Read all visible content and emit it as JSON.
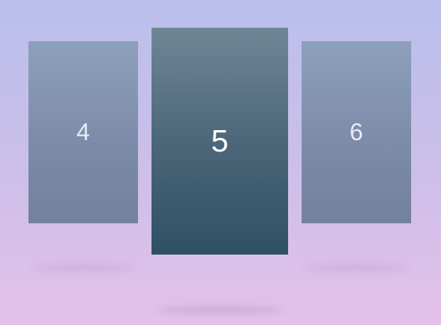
{
  "carousel": {
    "slides": [
      {
        "label": "4",
        "position": "left"
      },
      {
        "label": "5",
        "position": "center",
        "active": true
      },
      {
        "label": "6",
        "position": "right"
      }
    ]
  },
  "colors": {
    "background_top": "#babfec",
    "background_bottom": "#e4c0e9",
    "side_card": "#8293b0",
    "active_card_top": "#6e8797",
    "active_card_bottom": "#2f5064"
  }
}
